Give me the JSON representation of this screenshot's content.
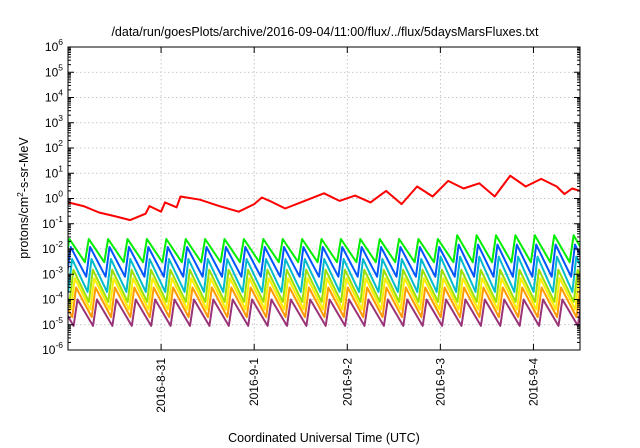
{
  "chart_data": {
    "type": "line",
    "title": "/data/run/goesPlots/archive/2016-09-04/11:00/flux/../flux/5daysMarsFluxes.txt",
    "xlabel": "Coordinated Universal Time (UTC)",
    "ylabel_parts": [
      "protons/cm",
      "2",
      "-s-sr-MeV"
    ],
    "x_scale": "time",
    "xlim": [
      "2016-08-30T00:00",
      "2016-09-04T12:00"
    ],
    "x_ticks": [
      {
        "t": "2016-08-31T00:00",
        "label": "2016-8-31"
      },
      {
        "t": "2016-09-01T00:00",
        "label": "2016-9-1"
      },
      {
        "t": "2016-09-02T00:00",
        "label": "2016-9-2"
      },
      {
        "t": "2016-09-03T00:00",
        "label": "2016-9-3"
      },
      {
        "t": "2016-09-04T00:00",
        "label": "2016-9-4"
      }
    ],
    "y_scale": "log",
    "ylim": [
      1e-06,
      1000000.0
    ],
    "y_ticks": [
      {
        "v": 1e-06,
        "base": "10",
        "exp": "-6"
      },
      {
        "v": 1e-05,
        "base": "10",
        "exp": "-5"
      },
      {
        "v": 0.0001,
        "base": "10",
        "exp": "-4"
      },
      {
        "v": 0.001,
        "base": "10",
        "exp": "-3"
      },
      {
        "v": 0.01,
        "base": "10",
        "exp": "-2"
      },
      {
        "v": 0.1,
        "base": "10",
        "exp": "-1"
      },
      {
        "v": 1.0,
        "base": "10",
        "exp": "0"
      },
      {
        "v": 10.0,
        "base": "10",
        "exp": "1"
      },
      {
        "v": 100.0,
        "base": "10",
        "exp": "2"
      },
      {
        "v": 1000.0,
        "base": "10",
        "exp": "3"
      },
      {
        "v": 10000.0,
        "base": "10",
        "exp": "4"
      },
      {
        "v": 100000.0,
        "base": "10",
        "exp": "5"
      },
      {
        "v": 1000000.0,
        "base": "10",
        "exp": "6"
      }
    ],
    "grid": true,
    "legend": "none",
    "series": [
      {
        "color": "#ff0000",
        "x": [
          "2016-08-30T00:00",
          "2016-08-30T04:00",
          "2016-08-30T08:00",
          "2016-08-30T12:00",
          "2016-08-30T16:00",
          "2016-08-30T20:00",
          "2016-08-30T21:00",
          "2016-08-31T00:00",
          "2016-08-31T01:00",
          "2016-08-31T04:00",
          "2016-08-31T05:00",
          "2016-08-31T10:00",
          "2016-08-31T15:00",
          "2016-08-31T20:00",
          "2016-09-01T00:00",
          "2016-09-01T02:00",
          "2016-09-01T04:00",
          "2016-09-01T08:00",
          "2016-09-01T12:00",
          "2016-09-01T18:00",
          "2016-09-01T22:00",
          "2016-09-02T02:00",
          "2016-09-02T06:00",
          "2016-09-02T10:00",
          "2016-09-02T14:00",
          "2016-09-02T18:00",
          "2016-09-02T22:00",
          "2016-09-03T02:00",
          "2016-09-03T06:00",
          "2016-09-03T10:00",
          "2016-09-03T14:00",
          "2016-09-03T18:00",
          "2016-09-03T22:00",
          "2016-09-04T02:00",
          "2016-09-04T06:00",
          "2016-09-04T08:00",
          "2016-09-04T10:00",
          "2016-09-04T12:00"
        ],
        "y": [
          0.7,
          0.5,
          0.28,
          0.2,
          0.14,
          0.25,
          0.5,
          0.3,
          0.7,
          0.45,
          1.2,
          0.9,
          0.5,
          0.3,
          0.6,
          1.1,
          0.8,
          0.4,
          0.7,
          1.6,
          0.8,
          1.3,
          0.7,
          2.0,
          0.6,
          3.0,
          1.2,
          5.0,
          2.5,
          4.0,
          1.2,
          8.0,
          3.0,
          6.0,
          3.0,
          1.5,
          2.5,
          2.0
        ]
      },
      {
        "color": "#00ee00",
        "pattern": "sawtooth",
        "peak": 0.025,
        "trough": 0.003,
        "period_hours": 5,
        "peak_after_2016-09-03": 0.035
      },
      {
        "color": "#0055ff",
        "pattern": "sawtooth",
        "peak": 0.012,
        "trough": 0.0008,
        "period_hours": 5,
        "peak_after_2016-09-03": 0.015
      },
      {
        "color": "#00bbcc",
        "pattern": "sawtooth",
        "peak": 0.004,
        "trough": 0.0002,
        "period_hours": 5,
        "peak_after_2016-09-03": 0.005
      },
      {
        "color": "#9be000",
        "pattern": "sawtooth",
        "peak": 0.0015,
        "trough": 8e-05,
        "period_hours": 5
      },
      {
        "color": "#ffee00",
        "pattern": "sawtooth",
        "peak": 0.0007,
        "trough": 4e-05,
        "period_hours": 5
      },
      {
        "color": "#ff9900",
        "pattern": "sawtooth",
        "peak": 0.0003,
        "trough": 2e-05,
        "period_hours": 5
      },
      {
        "color": "#993377",
        "pattern": "sawtooth",
        "peak": 0.0001,
        "trough": 9e-06,
        "period_hours": 5
      }
    ]
  }
}
